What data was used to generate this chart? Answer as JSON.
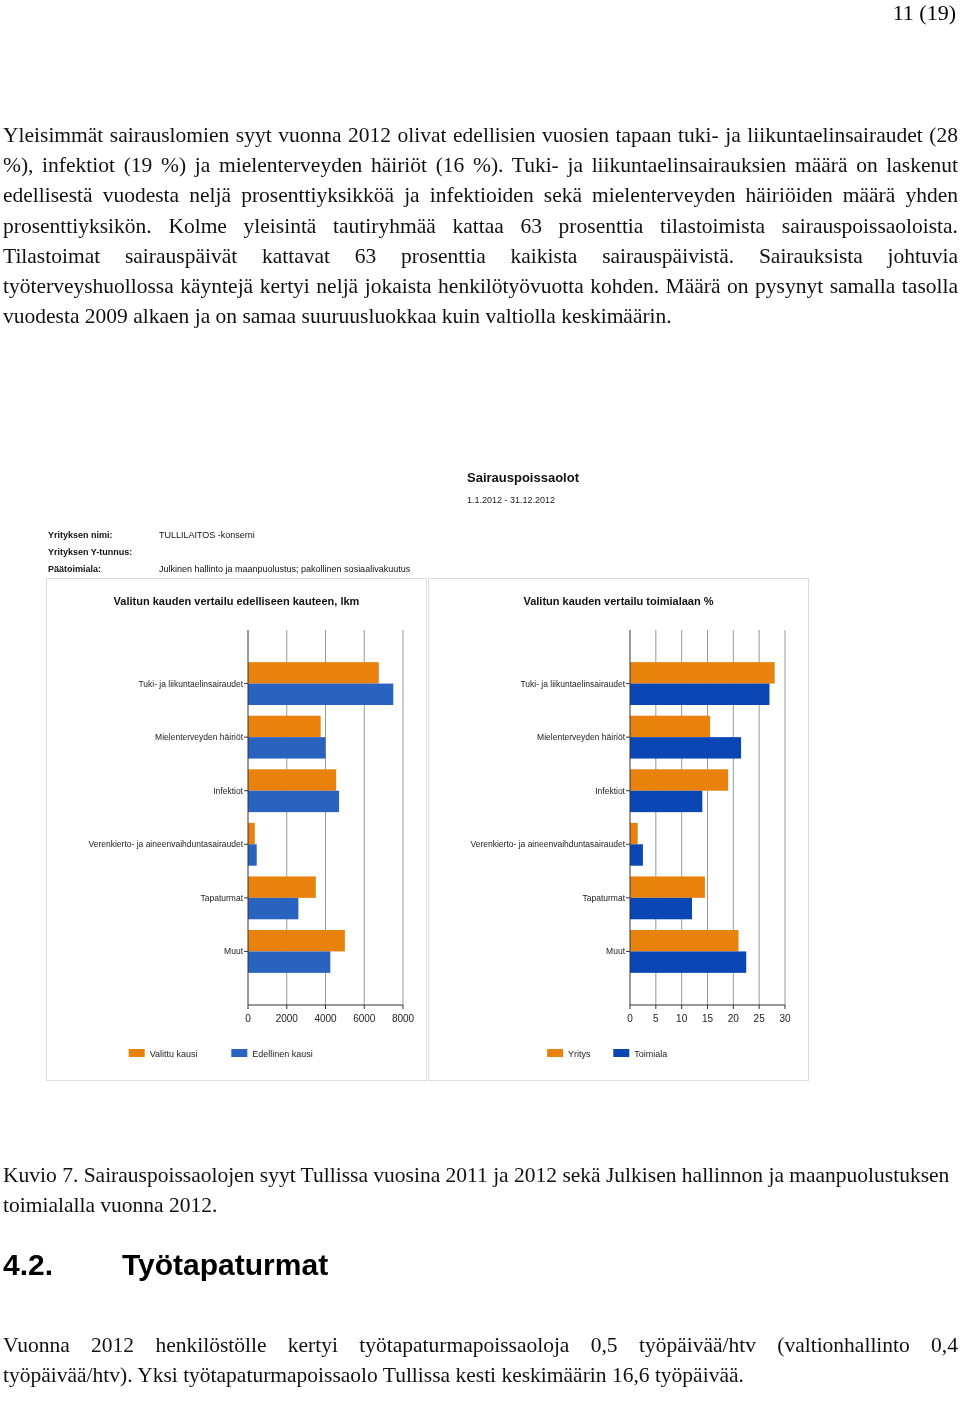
{
  "chart_data": [
    {
      "type": "bar",
      "orientation": "horizontal",
      "title": "Valitun kauden vertailu edelliseen kauteen, lkm",
      "categories": [
        "Tuki- ja liikuntaelinsairaudet",
        "Mielenterveyden häiriöt",
        "Infektiot",
        "Verenkierto- ja aineenvaihduntasairaudet",
        "Tapaturmat",
        "Muut"
      ],
      "series": [
        {
          "name": "Valittu kausi",
          "color": "#e8820c",
          "values": [
            6750,
            3750,
            4550,
            350,
            3500,
            5000
          ]
        },
        {
          "name": "Edellinen kausi",
          "color": "#2a62c0",
          "values": [
            7500,
            4000,
            4700,
            450,
            2600,
            4250
          ]
        }
      ],
      "xlim": [
        0,
        8000
      ],
      "xticks": [
        0,
        2000,
        4000,
        6000,
        8000
      ],
      "grid": "x",
      "legend": "bottom",
      "annotations": [
        "11 (19)",
        "Yleisimmät sairauslomien syyt vuonna 2012 olivat edellisien vuosien tapaan tuki- ja liikuntaelinsairaudet (28 %), infektiot (19 %) ja mielenterveyden häiriöt (16 %). Tuki- ja liikuntaelinsairauksien määrä on laskenut edellisestä vuodesta neljä prosenttiyksikköä ja infektioiden sekä mielenterveyden häiriöiden määrä yhden prosenttiyksikön. Kolme yleisintä tautiryhmää kattaa 63 prosenttia tilastoimista sairauspoissaoloista. Tilastoimat sairauspäivät kattavat 63 prosenttia kaikista sairauspäivistä. Sairauksista johtuvia työterveyshuollossa käyntejä kertyi neljä jokaista henkilötyövuotta kohden. Määrä on pysynyt samalla tasolla vuodesta 2009 alkaen ja on samaa suuruusluokkaa kuin valtiolla keskimäärin.",
        "Sairauspoissaolot",
        "1.1.2012 - 31.12.2012",
        "Yrityksen nimi:",
        "TULLILAITOS -konserni",
        "Yrityksen Y-tunnus:",
        "Päätoimiala:",
        "Julkinen hallinto ja maanpuolustus; pakollinen sosiaalivakuutus",
        "Kuvio 7. Sairauspoissaolojen syyt Tullissa vuosina 2011 ja 2012 sekä Julkisen hallinnon ja maanpuolustuksen toimialalla vuonna 2012.",
        "4.2.",
        "Työtapaturmat",
        "Vuonna 2012 henkilöstölle kertyi työtapaturmapoissaoloja 0,5 työpäivää/htv (valtionhallinto 0,4 työpäivää/htv). Yksi työtapaturmapoissaolo Tullissa kesti keskimäärin 16,6 työpäivää."
      ]
    },
    {
      "type": "bar",
      "orientation": "horizontal",
      "title": "Valitun kauden vertailu toimialaan %",
      "categories": [
        "Tuki- ja liikuntaelinsairaudet",
        "Mielenterveyden häiriöt",
        "Infektiot",
        "Verenkierto- ja aineenvaihduntasairaudet",
        "Tapaturmat",
        "Muut"
      ],
      "series": [
        {
          "name": "Yritys",
          "color": "#e8820c",
          "values": [
            28,
            15.5,
            19,
            1.5,
            14.5,
            21
          ]
        },
        {
          "name": "Toimiala",
          "color": "#0a46b4",
          "values": [
            27,
            21.5,
            14,
            2.5,
            12,
            22.5
          ]
        }
      ],
      "xlim": [
        0,
        30
      ],
      "xticks": [
        0,
        5,
        10,
        15,
        20,
        25,
        30
      ],
      "grid": "x",
      "legend": "bottom"
    }
  ]
}
